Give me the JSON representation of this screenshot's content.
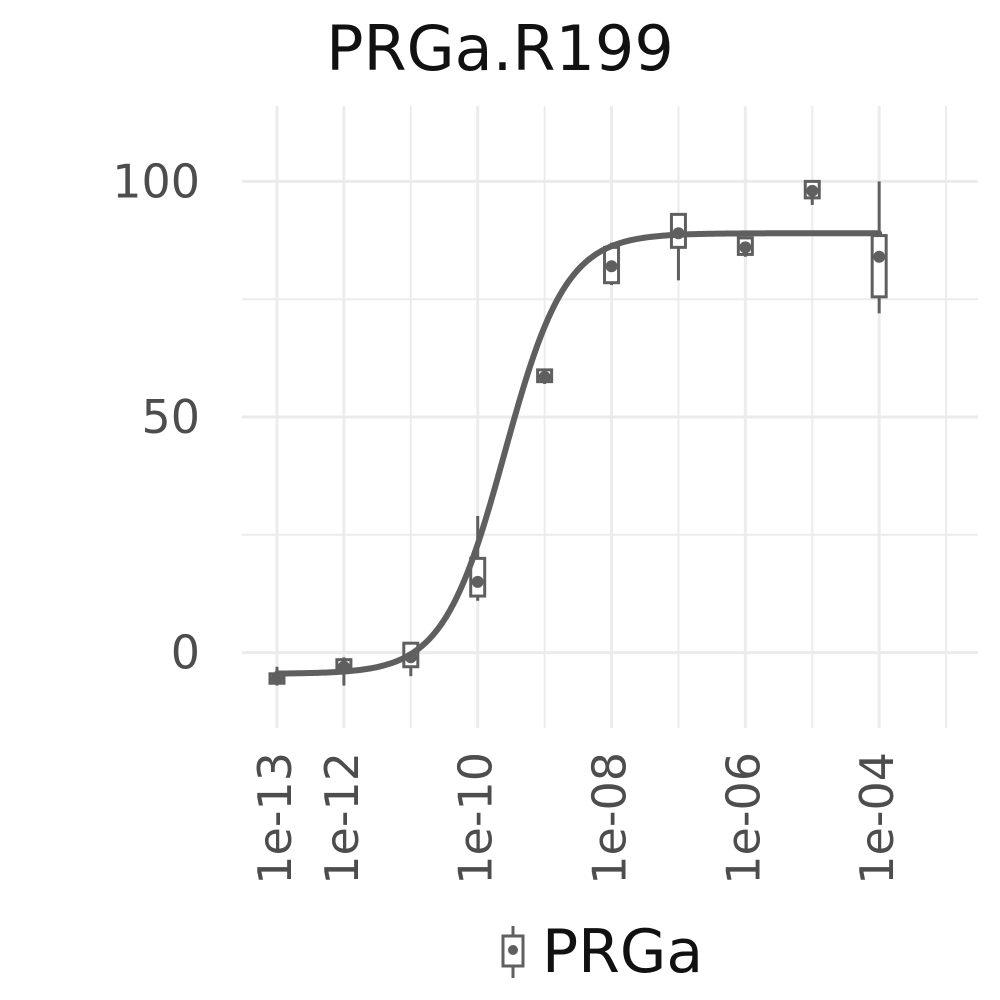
{
  "chart_data": {
    "type": "scatter",
    "title": "PRGa.R199",
    "xlabel": "",
    "ylabel": "",
    "x_scale": "log10",
    "xlim": [
      3e-14,
      0.003
    ],
    "ylim": [
      -16,
      116
    ],
    "x_ticks": [
      {
        "value": 1e-13,
        "label": "1e-13"
      },
      {
        "value": 1e-12,
        "label": "1e-12"
      },
      {
        "value": 1e-10,
        "label": "1e-10"
      },
      {
        "value": 1e-08,
        "label": "1e-08"
      },
      {
        "value": 1e-06,
        "label": "1e-06"
      },
      {
        "value": 0.0001,
        "label": "1e-04"
      }
    ],
    "y_ticks": [
      {
        "value": 0,
        "label": "0"
      },
      {
        "value": 50,
        "label": "50"
      },
      {
        "value": 100,
        "label": "100"
      }
    ],
    "grid": true,
    "legend_position": "bottom",
    "series": [
      {
        "name": "PRGa",
        "color": "#5f5f5f",
        "boxes": [
          {
            "x": 1e-13,
            "low": -7,
            "q1": -6.5,
            "median": -5.5,
            "q3": -4.5,
            "high": -3
          },
          {
            "x": 1e-12,
            "low": -7,
            "q1": -4,
            "median": -3,
            "q3": -1.5,
            "high": -1
          },
          {
            "x": 1e-11,
            "low": -5,
            "q1": -3,
            "median": -1,
            "q3": 2,
            "high": 2
          },
          {
            "x": 1e-10,
            "low": 11,
            "q1": 12,
            "median": 15,
            "q3": 20,
            "high": 29
          },
          {
            "x": 1e-09,
            "low": 57,
            "q1": 57.5,
            "median": 58.5,
            "q3": 60,
            "high": 60
          },
          {
            "x": 1e-08,
            "low": 78,
            "q1": 78.5,
            "median": 82,
            "q3": 86,
            "high": 87
          },
          {
            "x": 1e-07,
            "low": 79,
            "q1": 86,
            "median": 89,
            "q3": 93,
            "high": 93
          },
          {
            "x": 1e-06,
            "low": 84,
            "q1": 84.5,
            "median": 86,
            "q3": 88,
            "high": 88
          },
          {
            "x": 1e-05,
            "low": 95,
            "q1": 96.5,
            "median": 98,
            "q3": 100,
            "high": 100
          },
          {
            "x": 0.0001,
            "low": 72,
            "q1": 75.5,
            "median": 84,
            "q3": 88.5,
            "high": 100
          }
        ],
        "fit_curve": {
          "model": "4PL",
          "bottom": -4.5,
          "top": 89,
          "log_ec50": -9.6,
          "hill": 0.95
        }
      }
    ]
  }
}
